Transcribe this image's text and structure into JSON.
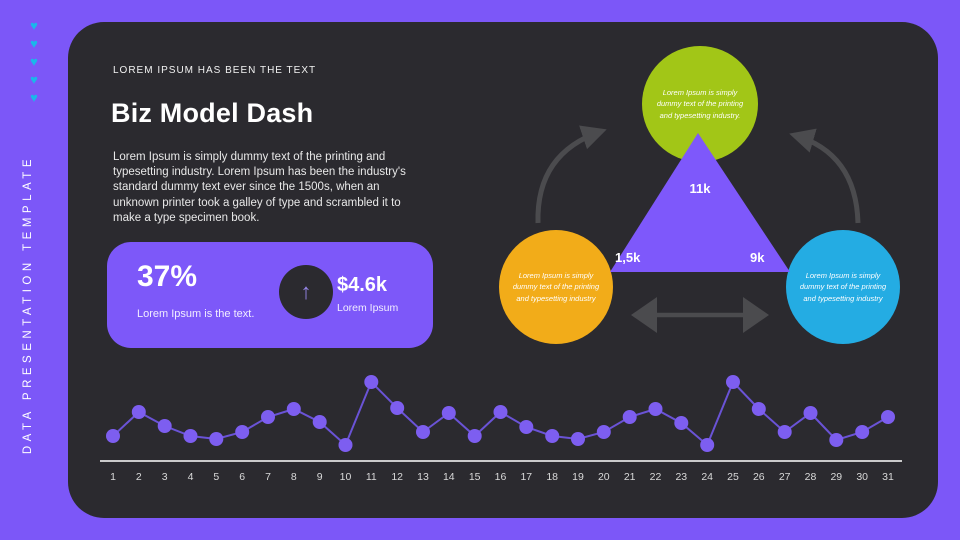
{
  "sidebar": {
    "vertical_text": "DATA PRESENTATION TEMPLATE",
    "hearts": [
      "♥",
      "♥",
      "♥",
      "♥",
      "♥"
    ],
    "heart_color": "#19b8ea"
  },
  "header": {
    "eyebrow": "LOREM IPSUM HAS BEEN THE TEXT",
    "title": "Biz Model Dash",
    "description": "Lorem Ipsum is simply dummy text of the printing and typesetting industry. Lorem Ipsum has been the industry's standard dummy text ever since the 1500s, when an unknown printer took a galley of type and scrambled it to make a type specimen book."
  },
  "stat_card": {
    "percentage": "37%",
    "percentage_caption": "Lorem Ipsum is the text.",
    "arrow_icon": "up-arrow",
    "arrow_glyph": "↑",
    "amount": "$4.6k",
    "amount_caption": "Lorem Ipsum"
  },
  "diagram": {
    "top_circle": {
      "text": "Lorem Ipsum is simply dummy text of the printing and typesetting industry.",
      "color": "#a2c617"
    },
    "left_circle": {
      "text": "Lorem Ipsum is simply dummy text of the printing and typesetting industry",
      "color": "#f2ac19"
    },
    "right_circle": {
      "text": "Lorem Ipsum is simply dummy text of the printing and typesetting industry",
      "color": "#24ace3"
    },
    "triangle": {
      "color": "#7e58fb",
      "top_label": "11k",
      "left_label": "1,5k",
      "right_label": "9k"
    },
    "arrow_color": "#4b4b4e"
  },
  "chart_data": {
    "type": "line",
    "title": "",
    "xlabel": "",
    "ylabel": "",
    "x": [
      1,
      2,
      3,
      4,
      5,
      6,
      7,
      8,
      9,
      10,
      11,
      12,
      13,
      14,
      15,
      16,
      17,
      18,
      19,
      20,
      21,
      22,
      23,
      24,
      25,
      26,
      27,
      28,
      29,
      30,
      31
    ],
    "values": [
      25,
      49,
      35,
      25,
      22,
      29,
      44,
      52,
      39,
      16,
      79,
      53,
      29,
      48,
      25,
      49,
      34,
      25,
      22,
      29,
      44,
      52,
      38,
      16,
      79,
      52,
      29,
      48,
      21,
      29,
      44
    ],
    "ylim": [
      0,
      95
    ],
    "grid": false,
    "legend": "none",
    "point_color": "#7d5ef0",
    "line_color": "#6a53d6",
    "axis_color": "#ffffff",
    "tick_color": "#d9d9d9"
  },
  "colors": {
    "frame_purple": "#7c57f8",
    "card_dark": "#2b2a2f",
    "stat_card_purple": "#7d58f9"
  }
}
